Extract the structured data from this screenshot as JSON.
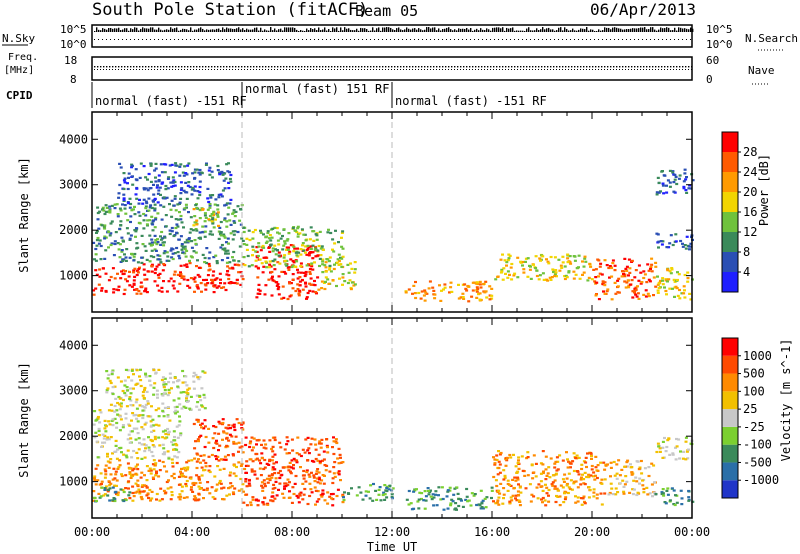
{
  "header": {
    "title": "South Pole Station (fitACF)",
    "beam": "Beam 05",
    "date": "06/Apr/2013"
  },
  "panels": {
    "nsky": {
      "left_label": "N.Sky",
      "right_label": "N.Search",
      "top_tick": "10^5",
      "bottom_tick": "10^0"
    },
    "freq": {
      "left_label_1": "Freq.",
      "left_label_2": "[MHz]",
      "left_top_tick": "18",
      "left_bottom_tick": "8",
      "right_top_tick": "60",
      "right_bottom_tick": "0",
      "right_label": "Nave"
    },
    "cpid": {
      "label": "CPID",
      "segments": [
        {
          "start_hour": 0,
          "text": "normal (fast) -151 RF"
        },
        {
          "start_hour": 6,
          "text": "normal (fast) 151 RF"
        },
        {
          "start_hour": 12,
          "text": "normal (fast) -151 RF"
        }
      ]
    }
  },
  "chart_data": [
    {
      "type": "heatmap",
      "name": "power",
      "ylabel": "Slant Range [km]",
      "ylim": [
        200,
        4600
      ],
      "yticks": [
        1000,
        2000,
        3000,
        4000
      ],
      "xlim": [
        0,
        24
      ],
      "colorbar": {
        "label": "Power [dB]",
        "ticks": [
          "4",
          "8",
          "12",
          "16",
          "20",
          "24",
          "28"
        ],
        "colors": [
          "#1f1fff",
          "#2a4fb4",
          "#3a8a5a",
          "#6fc23c",
          "#f2d500",
          "#ff9a00",
          "#ff5a00",
          "#ff0000"
        ]
      },
      "bands": [
        {
          "x0": 0.0,
          "x1": 2.0,
          "y0": 600,
          "y1": 1200,
          "level": 7
        },
        {
          "x0": 2.0,
          "x1": 6.0,
          "y0": 650,
          "y1": 1300,
          "level": 7
        },
        {
          "x0": 6.5,
          "x1": 9.0,
          "y0": 500,
          "y1": 1700,
          "level": 7
        },
        {
          "x0": 9.0,
          "x1": 10.5,
          "y0": 700,
          "y1": 1400,
          "level": 4
        },
        {
          "x0": 12.5,
          "x1": 16.0,
          "y0": 450,
          "y1": 900,
          "level": 5
        },
        {
          "x0": 16.0,
          "x1": 20.0,
          "y0": 900,
          "y1": 1500,
          "level": 4
        },
        {
          "x0": 20.0,
          "x1": 22.5,
          "y0": 500,
          "y1": 1400,
          "level": 6
        },
        {
          "x0": 22.5,
          "x1": 24.0,
          "y0": 500,
          "y1": 1200,
          "level": 4
        },
        {
          "x0": 0.0,
          "x1": 6.0,
          "y0": 1300,
          "y1": 2600,
          "level": 2
        },
        {
          "x0": 1.0,
          "x1": 5.5,
          "y0": 2600,
          "y1": 3500,
          "level": 1
        },
        {
          "x0": 4.0,
          "x1": 5.0,
          "y0": 2100,
          "y1": 2500,
          "level": 4
        },
        {
          "x0": 6.0,
          "x1": 10.0,
          "y0": 1200,
          "y1": 2100,
          "level": 3
        },
        {
          "x0": 22.5,
          "x1": 24.0,
          "y0": 2800,
          "y1": 3400,
          "level": 1
        },
        {
          "x0": 22.5,
          "x1": 24.0,
          "y0": 1600,
          "y1": 2000,
          "level": 1
        }
      ]
    },
    {
      "type": "heatmap",
      "name": "velocity",
      "ylabel": "Slant Range [km]",
      "xlabel": "Time UT",
      "ylim": [
        200,
        4600
      ],
      "yticks": [
        1000,
        2000,
        3000,
        4000
      ],
      "xlim": [
        0,
        24
      ],
      "xticks": [
        "00:00",
        "04:00",
        "08:00",
        "12:00",
        "16:00",
        "20:00",
        "00:00"
      ],
      "colorbar": {
        "label": "Velocity [m s^-1]",
        "ticks": [
          "1000",
          "500",
          "100",
          "25",
          "-25",
          "-100",
          "-500",
          "-1000"
        ],
        "colors": [
          "#2035c8",
          "#2a6fa8",
          "#3a8a5a",
          "#7bd030",
          "#c8c8c8",
          "#f2c000",
          "#ff8a00",
          "#ff4a00",
          "#ff0000"
        ]
      },
      "bands": [
        {
          "x0": 0.0,
          "x1": 6.0,
          "y0": 600,
          "y1": 1500,
          "level": 6
        },
        {
          "x0": 0.0,
          "x1": 1.5,
          "y0": 550,
          "y1": 900,
          "level": 2
        },
        {
          "x0": 6.0,
          "x1": 10.0,
          "y0": 500,
          "y1": 2000,
          "level": 7
        },
        {
          "x0": 4.0,
          "x1": 6.0,
          "y0": 1500,
          "y1": 2400,
          "level": 7
        },
        {
          "x0": 10.0,
          "x1": 12.0,
          "y0": 600,
          "y1": 1000,
          "level": 2
        },
        {
          "x0": 12.5,
          "x1": 16.0,
          "y0": 400,
          "y1": 900,
          "level": 2
        },
        {
          "x0": 16.0,
          "x1": 20.5,
          "y0": 500,
          "y1": 1700,
          "level": 6
        },
        {
          "x0": 20.5,
          "x1": 22.5,
          "y0": 700,
          "y1": 1500,
          "level": 5
        },
        {
          "x0": 22.5,
          "x1": 24.0,
          "y0": 500,
          "y1": 900,
          "level": 2
        },
        {
          "x0": 0.0,
          "x1": 3.5,
          "y0": 1500,
          "y1": 2600,
          "level": 4
        },
        {
          "x0": 0.5,
          "x1": 4.5,
          "y0": 2600,
          "y1": 3500,
          "level": 4
        },
        {
          "x0": 22.5,
          "x1": 24.0,
          "y0": 1500,
          "y1": 2000,
          "level": 4
        }
      ]
    }
  ]
}
